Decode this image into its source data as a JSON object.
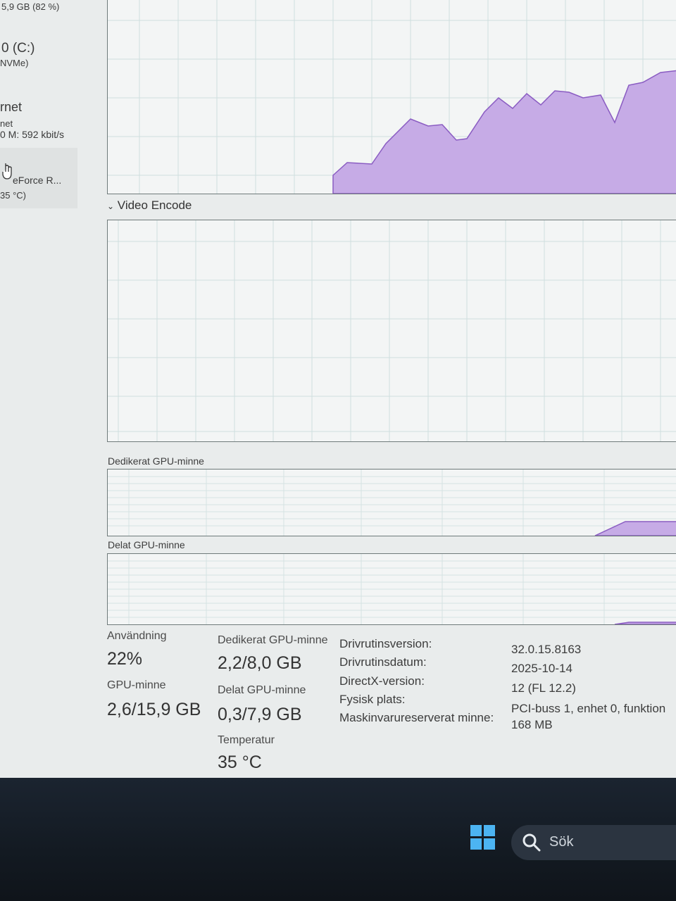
{
  "sidebar": {
    "memory_summary": "5,9 GB (82 %)",
    "disk_title": "0 (C:)",
    "disk_sub": "NVMe)",
    "network_title": "rnet",
    "network_sub": "net",
    "network_rate": "0 M: 592 kbit/s",
    "gpu_title": "eForce R...",
    "gpu_temp": "35 °C)"
  },
  "graphs": {
    "video_encode_title": "Video Encode",
    "dedicated_title": "Dedikerat GPU-minne",
    "shared_title": "Delat GPU-minne"
  },
  "stats": {
    "usage_label": "Användning",
    "usage_value": "22%",
    "gpu_mem_label": "GPU-minne",
    "gpu_mem_value": "2,6/15,9 GB",
    "dedicated_label": "Dedikerat GPU-minne",
    "dedicated_value": "2,2/8,0 GB",
    "shared_label": "Delat GPU-minne",
    "shared_value": "0,3/7,9 GB",
    "temp_label": "Temperatur",
    "temp_value": "35 °C"
  },
  "info": {
    "driver_version_label": "Drivrutinsversion:",
    "driver_version": "32.0.15.8163",
    "driver_date_label": "Drivrutinsdatum:",
    "driver_date": "2025-10-14",
    "directx_label": "DirectX-version:",
    "directx": "12 (FL 12.2)",
    "location_label": "Fysisk plats:",
    "location": "PCI-buss 1, enhet 0, funktion",
    "reserved_label": "Maskinvarureserverat minne:",
    "reserved": "168 MB"
  },
  "taskbar": {
    "search_placeholder": "Sök"
  },
  "colors": {
    "graph_fill": "#c6abe6",
    "graph_line": "#8a5cc2",
    "grid": "#cfdede",
    "taskbar": "#151c24"
  }
}
